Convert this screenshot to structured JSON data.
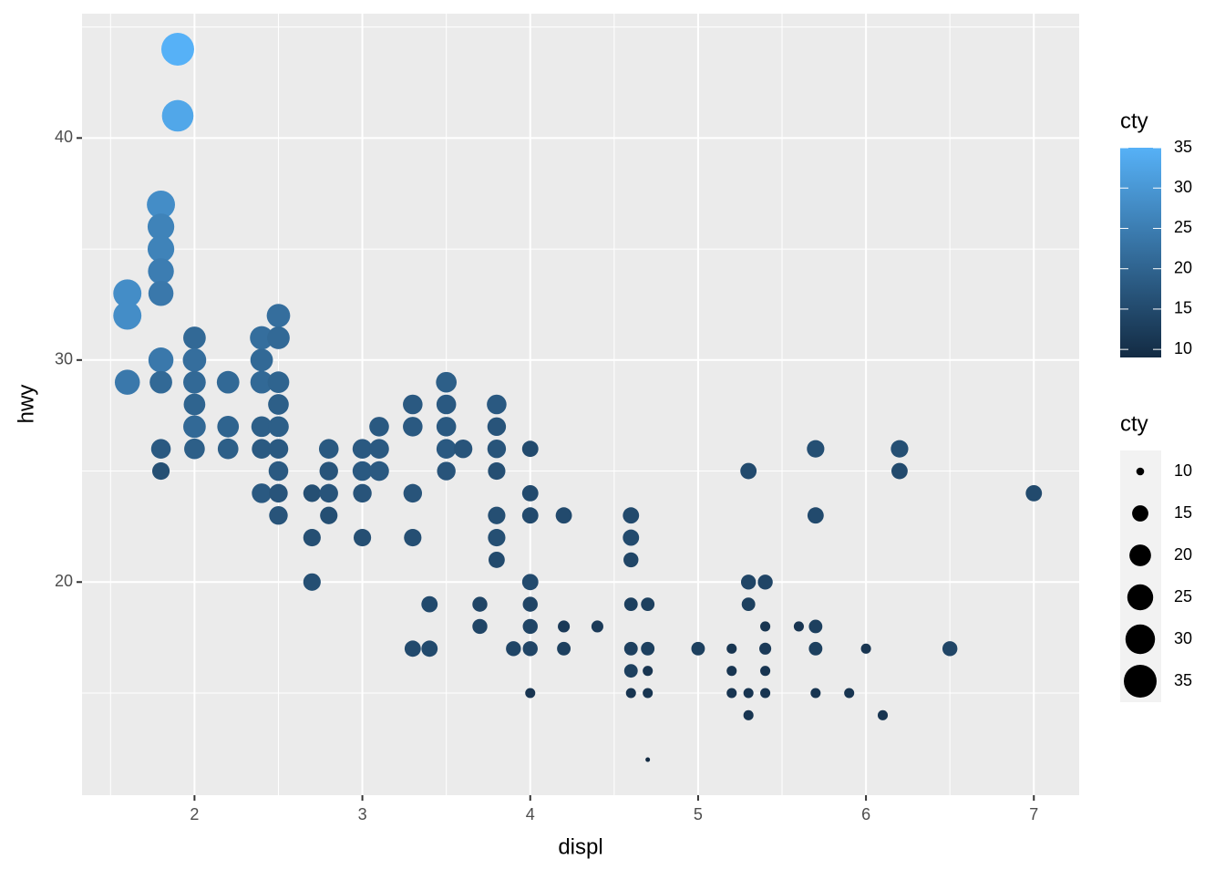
{
  "chart_data": {
    "type": "scatter",
    "x_label": "displ",
    "y_label": "hwy",
    "xlim": [
      1.33,
      7.27
    ],
    "ylim": [
      10.4,
      45.6
    ],
    "xticks": [
      2,
      3,
      4,
      5,
      6,
      7
    ],
    "yticks": [
      20,
      30,
      40
    ],
    "x_minor_grid": [
      1.5,
      2.5,
      3.5,
      4.5,
      5.5,
      6.5
    ],
    "y_minor_grid": [
      15,
      25,
      35,
      45
    ],
    "grid": true,
    "legend_position": "right",
    "color_low": "#132B43",
    "color_high": "#56B1F7",
    "cty_range": [
      9,
      35
    ],
    "color_legend_title": "cty",
    "color_legend_ticks": [
      10,
      15,
      20,
      25,
      30,
      35
    ],
    "size_legend_title": "cty",
    "size_legend_ticks": [
      10,
      15,
      20,
      25,
      30,
      35
    ],
    "series": [
      {
        "name": "cty",
        "x": [
          1.6,
          1.6,
          1.6,
          1.8,
          1.8,
          1.8,
          1.8,
          1.8,
          1.8,
          1.8,
          1.8,
          1.8,
          1.9,
          1.9,
          2.0,
          2.0,
          2.0,
          2.0,
          2.0,
          2.0,
          2.2,
          2.2,
          2.2,
          2.4,
          2.4,
          2.4,
          2.4,
          2.4,
          2.4,
          2.5,
          2.5,
          2.5,
          2.5,
          2.5,
          2.5,
          2.5,
          2.5,
          2.5,
          2.7,
          2.7,
          2.7,
          2.8,
          2.8,
          2.8,
          2.8,
          3.0,
          3.0,
          3.0,
          3.0,
          3.1,
          3.1,
          3.1,
          3.3,
          3.3,
          3.3,
          3.3,
          3.3,
          3.4,
          3.4,
          3.5,
          3.5,
          3.5,
          3.5,
          3.5,
          3.6,
          3.7,
          3.7,
          3.8,
          3.8,
          3.8,
          3.8,
          3.8,
          3.8,
          3.8,
          3.9,
          4.0,
          4.0,
          4.0,
          4.0,
          4.0,
          4.0,
          4.0,
          4.0,
          4.2,
          4.2,
          4.2,
          4.4,
          4.6,
          4.6,
          4.6,
          4.6,
          4.6,
          4.6,
          4.6,
          4.7,
          4.7,
          4.7,
          4.7,
          4.7,
          5.0,
          5.2,
          5.2,
          5.2,
          5.3,
          5.3,
          5.3,
          5.3,
          5.3,
          5.4,
          5.4,
          5.4,
          5.4,
          5.4,
          5.6,
          5.7,
          5.7,
          5.7,
          5.7,
          5.7,
          5.9,
          6.0,
          6.1,
          6.2,
          6.2,
          6.5,
          7.0
        ],
        "values": [
          33,
          32,
          29,
          37,
          36,
          35,
          34,
          33,
          30,
          29,
          26,
          25,
          44,
          41,
          31,
          30,
          29,
          28,
          27,
          26,
          29,
          27,
          26,
          31,
          30,
          29,
          27,
          26,
          24,
          32,
          31,
          29,
          28,
          27,
          26,
          25,
          24,
          23,
          24,
          22,
          20,
          26,
          25,
          24,
          23,
          26,
          25,
          24,
          22,
          27,
          26,
          25,
          28,
          27,
          24,
          22,
          17,
          19,
          17,
          29,
          28,
          27,
          26,
          25,
          26,
          19,
          18,
          28,
          27,
          26,
          25,
          23,
          22,
          21,
          17,
          26,
          24,
          23,
          20,
          19,
          18,
          17,
          15,
          23,
          18,
          17,
          18,
          23,
          22,
          21,
          19,
          17,
          16,
          15,
          19,
          17,
          16,
          15,
          12,
          17,
          17,
          16,
          15,
          25,
          20,
          19,
          15,
          14,
          20,
          18,
          17,
          16,
          15,
          18,
          26,
          23,
          18,
          17,
          15,
          15,
          17,
          14,
          26,
          25,
          17,
          24
        ],
        "sizes": [
          28,
          28,
          24,
          28,
          26,
          26,
          25,
          24,
          24,
          21,
          18,
          16,
          35,
          33,
          21,
          22,
          21,
          20,
          21,
          19,
          21,
          20,
          19,
          22,
          21,
          21,
          19,
          18,
          18,
          22,
          21,
          20,
          19,
          19,
          18,
          18,
          17,
          17,
          16,
          16,
          16,
          18,
          17,
          17,
          16,
          18,
          18,
          17,
          16,
          18,
          18,
          18,
          18,
          18,
          17,
          16,
          15,
          15,
          15,
          19,
          18,
          18,
          18,
          17,
          17,
          14,
          14,
          18,
          17,
          17,
          16,
          16,
          16,
          15,
          14,
          15,
          15,
          15,
          15,
          14,
          14,
          14,
          11,
          15,
          12,
          13,
          12,
          15,
          15,
          14,
          13,
          13,
          13,
          11,
          13,
          13,
          11,
          11,
          9,
          13,
          11,
          11,
          11,
          15,
          14,
          13,
          11,
          11,
          14,
          11,
          12,
          11,
          11,
          11,
          16,
          15,
          13,
          13,
          11,
          11,
          11,
          11,
          16,
          15,
          14,
          15
        ]
      }
    ]
  }
}
